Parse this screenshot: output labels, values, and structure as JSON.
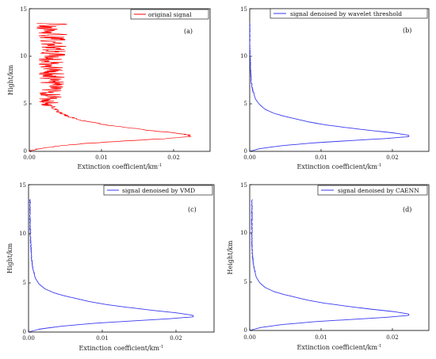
{
  "charts": [
    {
      "panel_label": "(a)",
      "legend": "original signal",
      "ylabel": "Hight/km",
      "xlabel": "Extinction coefficient/km",
      "xlabel_sup": "-1",
      "color": "#ff0000",
      "x_ticks": [
        "0.00",
        "0.01",
        "0.02"
      ],
      "y_ticks": [
        "0",
        "5",
        "10",
        "15"
      ]
    },
    {
      "panel_label": "(b)",
      "legend": "signal denoised by wavelet threshold",
      "ylabel": "",
      "xlabel": "Extinction coefficient/km",
      "xlabel_sup": "-1",
      "color": "#3a3af0",
      "x_ticks": [
        "0.00",
        "0.01",
        "0.02"
      ],
      "y_ticks": [
        "0",
        "5",
        "10",
        "15"
      ]
    },
    {
      "panel_label": "(c)",
      "legend": "signal denoised by VMD",
      "ylabel": "Hight/km",
      "xlabel": "Extinction coefficient/km",
      "xlabel_sup": "-1",
      "color": "#3a3af0",
      "x_ticks": [
        "0.00",
        "0.01",
        "0.02"
      ],
      "y_ticks": [
        "0",
        "5",
        "10",
        "15"
      ]
    },
    {
      "panel_label": "(d)",
      "legend": "signal denoised by CAENN",
      "ylabel": "Height/km",
      "xlabel": "Extinction coefficient/km",
      "xlabel_sup": "-1",
      "color": "#3a3af0",
      "x_ticks": [
        "0.00",
        "0.01",
        "0.02"
      ],
      "y_ticks": [
        "0",
        "5",
        "10",
        "15"
      ]
    }
  ],
  "chart_data": [
    {
      "type": "line",
      "series": [
        {
          "name": "original signal",
          "x": [
            0.0,
            0.0015,
            0.0045,
            0.009,
            0.0145,
            0.019,
            0.0222,
            0.0222,
            0.02,
            0.0168,
            0.0135,
            0.0105,
            0.0082,
            0.0066,
            0.0053,
            0.0044,
            0.0038,
            0.0034,
            0.0031,
            0.003,
            0.003,
            0.0031,
            0.0032,
            0.0032
          ],
          "y": [
            0.0,
            0.3,
            0.6,
            0.9,
            1.15,
            1.35,
            1.55,
            1.7,
            1.95,
            2.2,
            2.5,
            2.8,
            3.1,
            3.4,
            3.7,
            4.0,
            4.3,
            4.6,
            4.9,
            5.3,
            6.0,
            8.0,
            11.0,
            13.5
          ]
        }
      ],
      "noisy": true,
      "xlim": [
        0.0,
        0.025
      ],
      "ylim": [
        0,
        15
      ]
    },
    {
      "type": "line",
      "series": [
        {
          "name": "signal denoised by wavelet threshold",
          "x": [
            0.0,
            0.0015,
            0.0045,
            0.009,
            0.0145,
            0.019,
            0.0222,
            0.0222,
            0.02,
            0.0168,
            0.0135,
            0.0105,
            0.0082,
            0.0065,
            0.0048,
            0.0034,
            0.0022,
            0.0014,
            0.0008,
            0.0004,
            0.0002,
            0.0001,
            0.0,
            0.0
          ],
          "y": [
            0.0,
            0.3,
            0.6,
            0.9,
            1.15,
            1.35,
            1.55,
            1.7,
            1.95,
            2.2,
            2.5,
            2.8,
            3.1,
            3.4,
            3.7,
            4.0,
            4.4,
            4.9,
            5.5,
            6.5,
            7.5,
            9.0,
            11.0,
            13.5
          ]
        }
      ],
      "noisy": false,
      "xlim": [
        0.0,
        0.025
      ],
      "ylim": [
        0,
        15
      ]
    },
    {
      "type": "line",
      "series": [
        {
          "name": "signal denoised by VMD",
          "x": [
            0.0,
            0.0015,
            0.0045,
            0.009,
            0.0145,
            0.019,
            0.0222,
            0.0222,
            0.02,
            0.0168,
            0.0135,
            0.0105,
            0.0082,
            0.0065,
            0.0048,
            0.0034,
            0.0022,
            0.0014,
            0.0009,
            0.0006,
            0.0004,
            0.0003,
            0.0002,
            0.0002
          ],
          "y": [
            0.0,
            0.3,
            0.6,
            0.9,
            1.15,
            1.35,
            1.55,
            1.7,
            1.95,
            2.2,
            2.5,
            2.8,
            3.1,
            3.4,
            3.7,
            4.0,
            4.4,
            4.9,
            5.5,
            6.5,
            7.5,
            9.0,
            11.0,
            13.5
          ]
        }
      ],
      "noisy": false,
      "xlim": [
        0.0,
        0.025
      ],
      "ylim": [
        0,
        15
      ]
    },
    {
      "type": "line",
      "series": [
        {
          "name": "signal denoised by CAENN",
          "x": [
            0.0,
            0.0015,
            0.0045,
            0.009,
            0.0145,
            0.019,
            0.0222,
            0.0222,
            0.02,
            0.0168,
            0.0135,
            0.0105,
            0.0082,
            0.0065,
            0.0048,
            0.0034,
            0.0022,
            0.0014,
            0.0009,
            0.0006,
            0.0004,
            0.0003,
            0.0003,
            0.0003
          ],
          "y": [
            0.0,
            0.3,
            0.6,
            0.9,
            1.15,
            1.35,
            1.55,
            1.7,
            1.95,
            2.2,
            2.5,
            2.8,
            3.1,
            3.4,
            3.7,
            4.0,
            4.4,
            4.9,
            5.5,
            6.5,
            7.5,
            9.0,
            11.0,
            13.5
          ]
        }
      ],
      "noisy": false,
      "xlim": [
        0.0,
        0.025
      ],
      "ylim": [
        0,
        15
      ]
    }
  ]
}
